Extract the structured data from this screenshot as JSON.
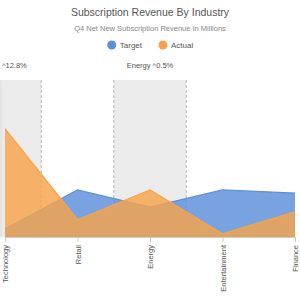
{
  "chart_data": {
    "type": "area",
    "title": "Subscription Revenue By Industry",
    "subtitle": "Q4 Net New Subscription Revenue In Millions",
    "categories": [
      "Technology",
      "Retail",
      "Energy",
      "Entertainment",
      "Finance"
    ],
    "series": [
      {
        "name": "Target",
        "color": "#5b8fd9",
        "values": [
          5,
          30,
          19,
          30,
          28
        ]
      },
      {
        "name": "Actual",
        "color": "#f7a34b",
        "values": [
          69,
          11,
          30,
          2,
          16
        ]
      }
    ],
    "ylim": [
      0,
      100
    ],
    "annotations": [
      {
        "category": "Technology",
        "text": "^12.8%"
      },
      {
        "category": "Energy",
        "text": "Energy ^0.5%"
      }
    ],
    "legend": "top",
    "tick_labels": "x"
  }
}
